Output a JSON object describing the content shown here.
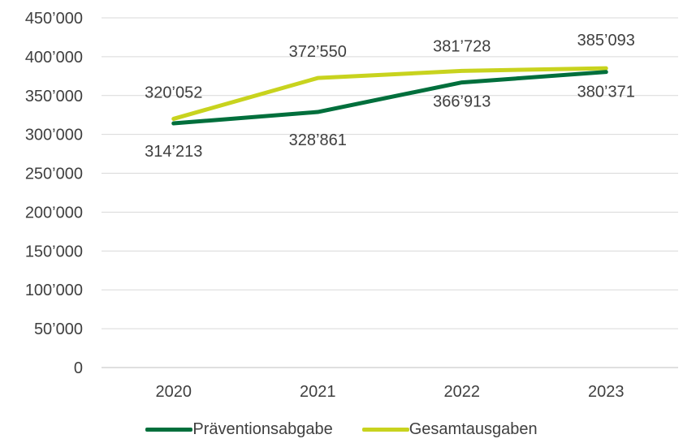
{
  "chart_data": {
    "type": "line",
    "categories": [
      "2020",
      "2021",
      "2022",
      "2023"
    ],
    "series": [
      {
        "name": "Präventionsabgabe",
        "values": [
          314213,
          328861,
          366913,
          380371
        ],
        "labels": [
          "314’213",
          "328’861",
          "366’913",
          "380’371"
        ],
        "color": "#006f3c"
      },
      {
        "name": "Gesamtausgaben",
        "values": [
          320052,
          372550,
          381728,
          385093
        ],
        "labels": [
          "320’052",
          "372’550",
          "381’728",
          "385’093"
        ],
        "color": "#c8d31e"
      }
    ],
    "ylim": [
      0,
      450000
    ],
    "yticks": [
      0,
      50000,
      100000,
      150000,
      200000,
      250000,
      300000,
      350000,
      400000,
      450000
    ],
    "ytick_labels": [
      "0",
      "50’000",
      "100’000",
      "150’000",
      "200’000",
      "250’000",
      "300’000",
      "350’000",
      "400’000",
      "450’000"
    ],
    "grid": true,
    "legend_position": "bottom",
    "title": "",
    "xlabel": "",
    "ylabel": ""
  }
}
